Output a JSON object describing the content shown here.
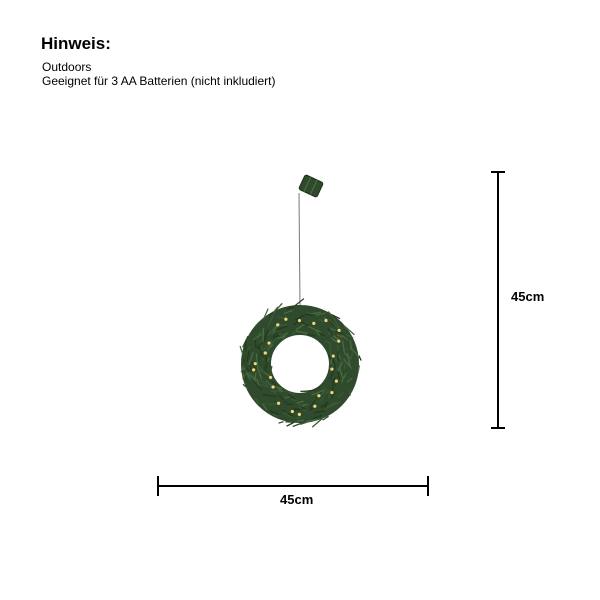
{
  "note": {
    "title": "Hinweis:",
    "lines": [
      "Outdoors",
      "Geeignet für 3 AA Batterien (nicht inkludiert)"
    ]
  },
  "dimensions": {
    "width_label": "45cm",
    "height_label": "45cm"
  },
  "product": {
    "image": "wreath-with-battery-box-icon",
    "colors": {
      "foliage": "#2f4a2c",
      "light": "#f3d77a",
      "line": "#000000"
    }
  }
}
